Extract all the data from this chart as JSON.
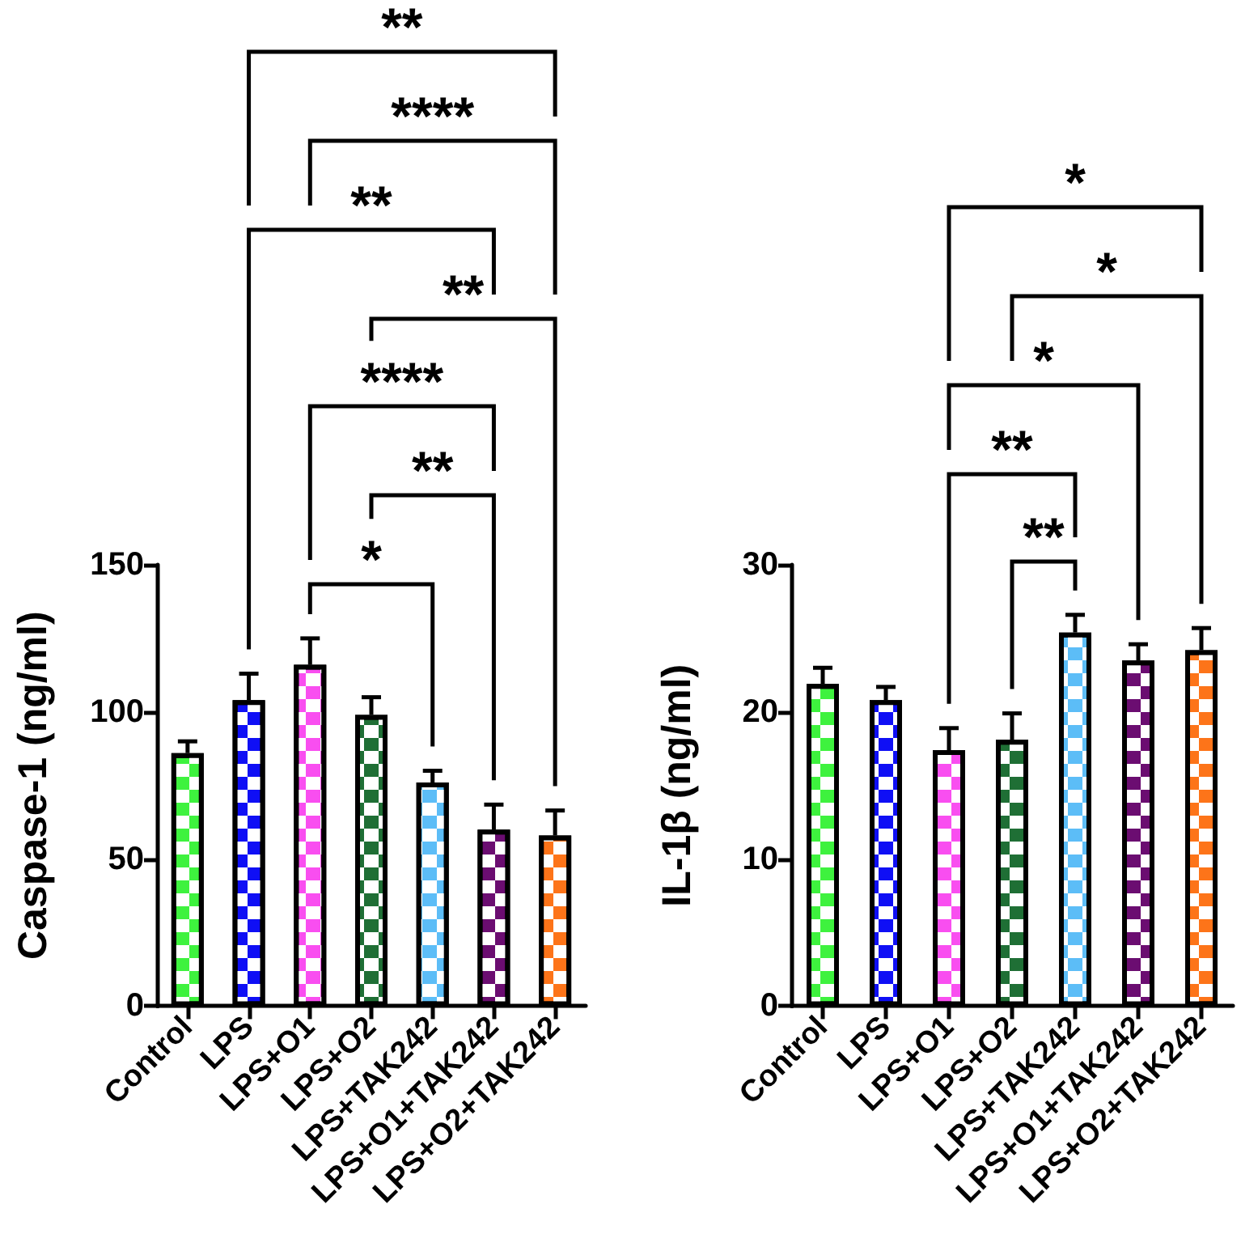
{
  "chart_data": [
    {
      "type": "bar",
      "ylabel": "Caspase-1 (ng/ml)",
      "categories": [
        "Control",
        "LPS",
        "LPS+O1",
        "LPS+O2",
        "LPS+TAK242",
        "LPS+O1+TAK242",
        "LPS+O2+TAK242"
      ],
      "values": [
        86,
        104,
        116,
        99,
        76,
        60,
        58
      ],
      "errors": [
        4,
        9,
        9,
        6,
        4,
        8.5,
        8.5
      ],
      "colors": [
        "#3ef23e",
        "#0f0ff5",
        "#f94ef0",
        "#1f6f35",
        "#5cbdf7",
        "#6b0d71",
        "#fd7419"
      ],
      "ylim": [
        0,
        150
      ],
      "yticks": [
        0,
        50,
        100,
        150
      ],
      "annotations": [
        "**",
        "****",
        "**",
        "**",
        "****",
        "**",
        "*"
      ]
    },
    {
      "type": "bar",
      "ylabel": "IL-1β (ng/ml)",
      "categories": [
        "Control",
        "LPS",
        "LPS+O1",
        "LPS+O2",
        "LPS+TAK242",
        "LPS+O1+TAK242",
        "LPS+O2+TAK242"
      ],
      "values": [
        21.9,
        20.8,
        17.4,
        18.1,
        25.4,
        23.5,
        24.2
      ],
      "errors": [
        1.1,
        0.9,
        1.5,
        1.8,
        1.2,
        1.1,
        1.5
      ],
      "colors": [
        "#3ef23e",
        "#0f0ff5",
        "#f94ef0",
        "#1f6f35",
        "#5cbdf7",
        "#6b0d71",
        "#fd7419"
      ],
      "ylim": [
        0,
        30
      ],
      "yticks": [
        0,
        10,
        20,
        30
      ],
      "annotations": [
        "*",
        "*",
        "*",
        "**",
        "**"
      ]
    }
  ]
}
